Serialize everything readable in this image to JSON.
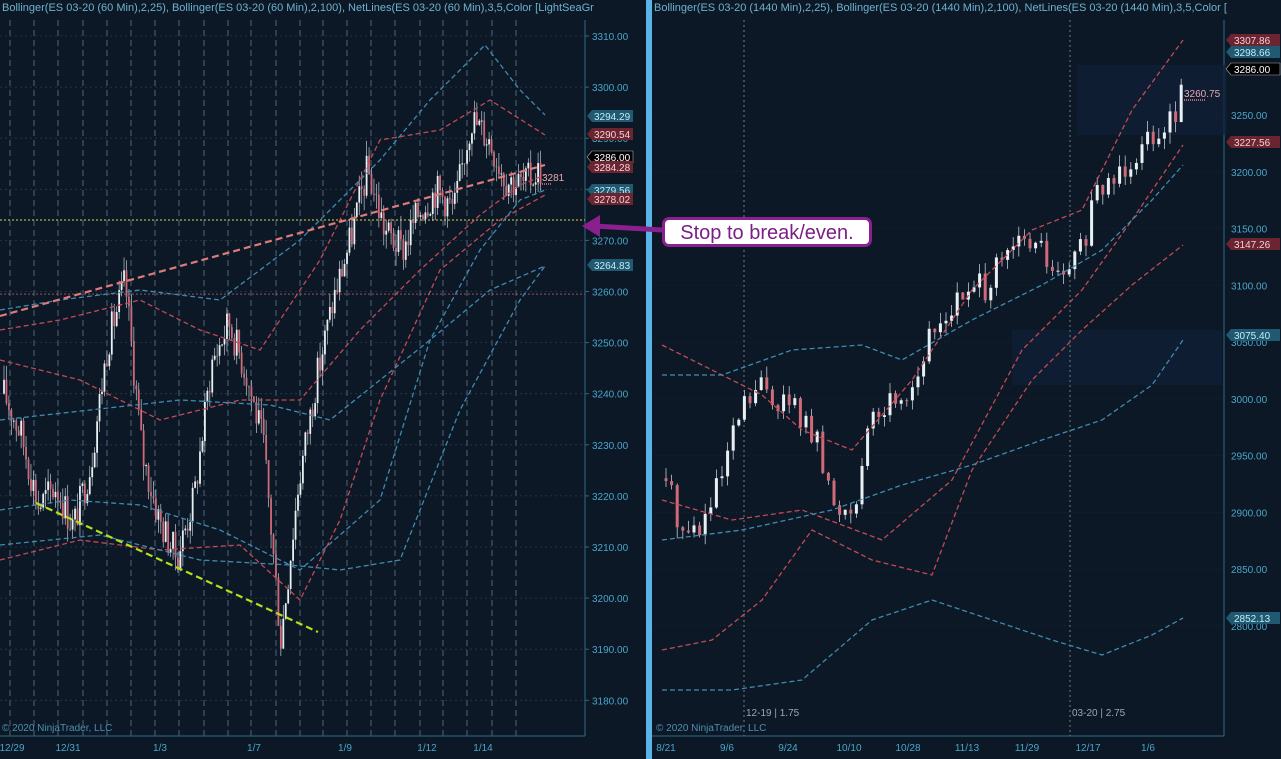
{
  "left_chart": {
    "header": "Bollinger(ES 03-20 (60 Min),2,25), Bollinger(ES 03-20 (60 Min),2,100), NetLines(ES 03-20 (60 Min),3,5,Color [LightSeaGr",
    "copyright": "© 2020 NinjaTrader, LLC",
    "x_labels": [
      "12/29",
      "12/31",
      "1/3",
      "1/7",
      "1/9",
      "1/12",
      "1/14"
    ],
    "y_ticks": [
      "3310.00",
      "3300.00",
      "3290.00",
      "3280.00",
      "3270.00",
      "3260.00",
      "3250.00",
      "3240.00",
      "3230.00",
      "3220.00",
      "3210.00",
      "3200.00",
      "3190.00",
      "3180.00"
    ],
    "price_labels": [
      {
        "text": "3294.29",
        "style": "teal"
      },
      {
        "text": "3290.54",
        "style": "red"
      },
      {
        "text": "3286.00",
        "style": "black"
      },
      {
        "text": "3284.28",
        "style": "red"
      },
      {
        "text": "3279.56",
        "style": "teal"
      },
      {
        "text": "3278.02",
        "style": "red"
      },
      {
        "text": "3264.83",
        "style": "teal"
      }
    ],
    "order_label": "3281"
  },
  "right_chart": {
    "header": "Bollinger(ES 03-20 (1440 Min),2,25), Bollinger(ES 03-20 (1440 Min),2,100), NetLines(ES 03-20 (1440 Min),3,5,Color [",
    "copyright": "© 2020 NinjaTrader, LLC",
    "x_labels": [
      "8/21",
      "9/6",
      "9/24",
      "10/10",
      "10/28",
      "11/13",
      "11/29",
      "12/17",
      "1/6"
    ],
    "y_ticks": [
      "3250.00",
      "3200.00",
      "3150.00",
      "3100.00",
      "3050.00",
      "3000.00",
      "2950.00",
      "2900.00",
      "2850.00",
      "2800.00"
    ],
    "price_labels": [
      {
        "text": "3307.86",
        "style": "red"
      },
      {
        "text": "3298.66",
        "style": "teal"
      },
      {
        "text": "3286.00",
        "style": "black"
      },
      {
        "text": "3227.56",
        "style": "red"
      },
      {
        "text": "3147.26",
        "style": "red"
      },
      {
        "text": "3075.40",
        "style": "teal"
      },
      {
        "text": "2852.13",
        "style": "teal"
      }
    ],
    "order_label": "3260.75",
    "rollover_labels": [
      "12-19 | 1.75",
      "03-20 | 2.75"
    ]
  },
  "annotation": {
    "text": "Stop to break/even."
  }
}
